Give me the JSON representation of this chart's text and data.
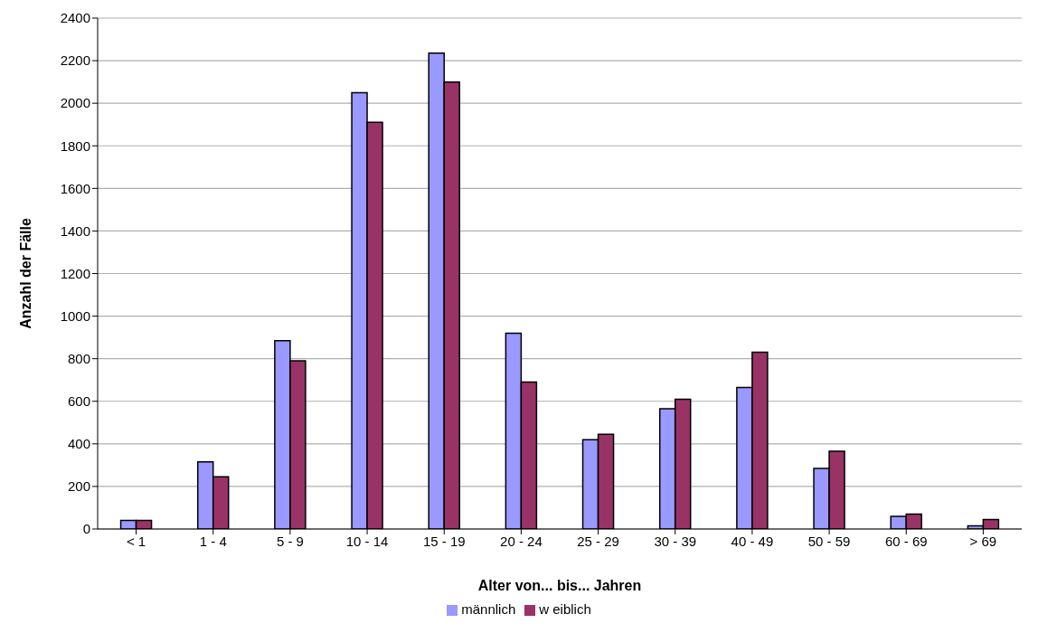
{
  "chart_data": {
    "type": "bar",
    "xlabel": "Alter von... bis... Jahren",
    "ylabel": "Anzahl der Fälle",
    "categories": [
      "< 1",
      "1 - 4",
      "5 - 9",
      "10 - 14",
      "15 - 19",
      "20 - 24",
      "25 - 29",
      "30 - 39",
      "40 - 49",
      "50 - 59",
      "60 - 69",
      "> 69"
    ],
    "series": [
      {
        "name": "männlich",
        "color": "#9999ff",
        "values": [
          40,
          315,
          885,
          2050,
          2235,
          920,
          420,
          565,
          665,
          285,
          60,
          15
        ]
      },
      {
        "name": "w eiblich",
        "color": "#993366",
        "values": [
          40,
          245,
          790,
          1910,
          2100,
          690,
          445,
          610,
          830,
          365,
          70,
          45
        ]
      }
    ],
    "ylim": [
      0,
      2400
    ],
    "yticks": [
      0,
      200,
      400,
      600,
      800,
      1000,
      1200,
      1400,
      1600,
      1800,
      2000,
      2200,
      2400
    ],
    "grid": "y",
    "legend": "bottom"
  }
}
